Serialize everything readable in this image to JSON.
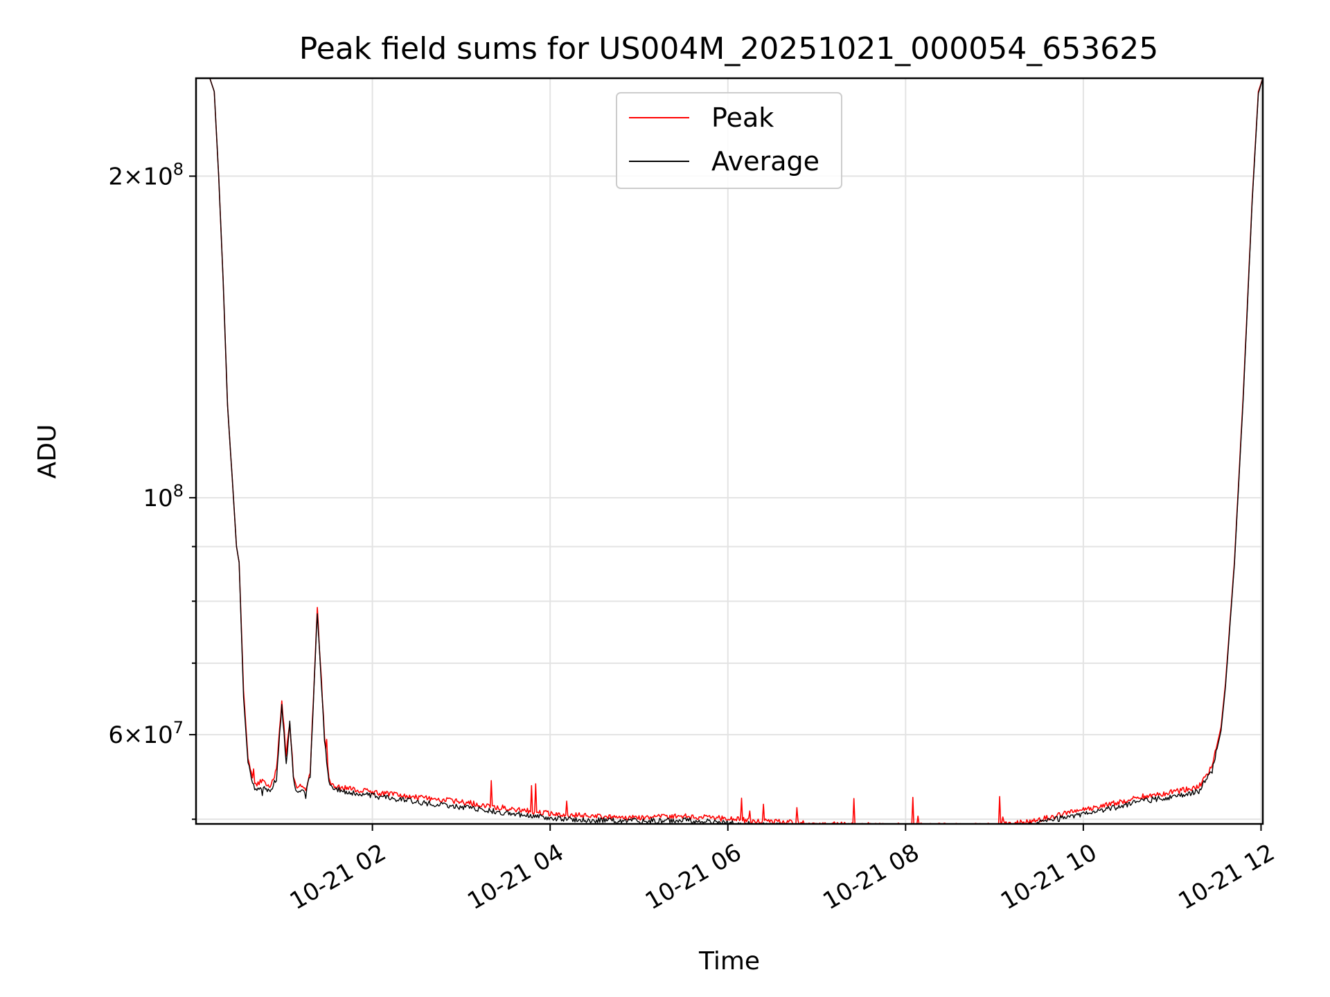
{
  "chart_data": {
    "type": "line",
    "title": "Peak field sums for US004M_20251021_000054_653625",
    "xlabel": "Time",
    "ylabel": "ADU",
    "yscale": "log",
    "grid": true,
    "legend_position": "top-center",
    "x_unit": "hours since 10-21 00:00",
    "xlim": [
      0.015,
      12.02
    ],
    "ylim": [
      49500000,
      247000000
    ],
    "x_ticks": [
      {
        "value": 2,
        "label": "10-21 02"
      },
      {
        "value": 4,
        "label": "10-21 04"
      },
      {
        "value": 6,
        "label": "10-21 06"
      },
      {
        "value": 8,
        "label": "10-21 08"
      },
      {
        "value": 10,
        "label": "10-21 10"
      },
      {
        "value": 12,
        "label": "10-21 12"
      }
    ],
    "y_major_ticks": [
      {
        "value": 60000000,
        "mantissa": "6",
        "exponent": "7"
      },
      {
        "value": 100000000,
        "mantissa": "",
        "exponent": "8"
      },
      {
        "value": 200000000,
        "mantissa": "2",
        "exponent": "8"
      }
    ],
    "y_minor_ticks": [
      50000000,
      70000000,
      80000000,
      90000000
    ],
    "series": [
      {
        "name": "Peak",
        "color": "#ff0000",
        "x": [
          0.015,
          0.17,
          0.22,
          0.27,
          0.32,
          0.37,
          0.42,
          0.47,
          0.5,
          0.55,
          0.6,
          0.65,
          0.7,
          0.75,
          0.85,
          0.92,
          0.98,
          1.03,
          1.07,
          1.11,
          1.15,
          1.2,
          1.25,
          1.3,
          1.38,
          1.46,
          1.51,
          1.56,
          1.61,
          1.66,
          1.75,
          2.0,
          2.5,
          3.0,
          3.5,
          4.0,
          4.5,
          5.0,
          5.5,
          5.9,
          6.2,
          6.6,
          7.0,
          7.5,
          8.0,
          8.5,
          9.0,
          9.4,
          9.8,
          10.2,
          10.6,
          11.0,
          11.3,
          11.45,
          11.55,
          11.6,
          11.7,
          11.8,
          11.9,
          11.97,
          12.02
        ],
        "y": [
          247000000,
          247000000,
          240000000,
          200000000,
          160000000,
          122000000,
          105000000,
          90000000,
          87000000,
          66000000,
          57000000,
          54500000,
          53800000,
          54300000,
          53800000,
          55500000,
          64500000,
          57500000,
          61800000,
          55000000,
          53200000,
          53800000,
          53400000,
          55500000,
          78500000,
          60000000,
          54500000,
          53700000,
          53600000,
          53500000,
          53400000,
          53000000,
          52400000,
          51900000,
          51200000,
          50600000,
          50300000,
          50200000,
          50300000,
          50100000,
          49900000,
          49700000,
          49500000,
          49400000,
          49300000,
          49300000,
          49400000,
          49700000,
          50600000,
          51400000,
          52400000,
          53000000,
          53600000,
          56000000,
          61000000,
          67000000,
          87000000,
          125000000,
          190000000,
          240000000,
          247000000
        ]
      },
      {
        "name": "Average",
        "color": "#000000",
        "x": [
          0.015,
          0.17,
          0.22,
          0.27,
          0.32,
          0.37,
          0.42,
          0.47,
          0.5,
          0.55,
          0.6,
          0.65,
          0.7,
          0.75,
          0.85,
          0.92,
          0.98,
          1.03,
          1.07,
          1.11,
          1.15,
          1.2,
          1.25,
          1.3,
          1.38,
          1.46,
          1.51,
          1.56,
          1.61,
          1.66,
          1.75,
          2.0,
          2.5,
          3.0,
          3.5,
          4.0,
          4.5,
          5.0,
          5.5,
          5.9,
          6.2,
          6.6,
          7.0,
          7.5,
          8.0,
          8.5,
          9.0,
          9.4,
          9.8,
          10.2,
          10.6,
          11.0,
          11.3,
          11.45,
          11.55,
          11.6,
          11.7,
          11.8,
          11.9,
          11.97,
          12.02
        ],
        "y": [
          247000000,
          247000000,
          240000000,
          200000000,
          160000000,
          122000000,
          105000000,
          90000000,
          87000000,
          65000000,
          56500000,
          54000000,
          53200000,
          53500000,
          53200000,
          54500000,
          64000000,
          56500000,
          61500000,
          54500000,
          52800000,
          53200000,
          52900000,
          55000000,
          78000000,
          59500000,
          54200000,
          53400000,
          53300000,
          53200000,
          53000000,
          52600000,
          51900000,
          51300000,
          50700000,
          50100000,
          49900000,
          49800000,
          49900000,
          49700000,
          49500000,
          49300000,
          49200000,
          49100000,
          49100000,
          49100000,
          49200000,
          49400000,
          50200000,
          50900000,
          51900000,
          52500000,
          53100000,
          55500000,
          60500000,
          66500000,
          86500000,
          124000000,
          189000000,
          239000000,
          247000000
        ]
      }
    ]
  }
}
